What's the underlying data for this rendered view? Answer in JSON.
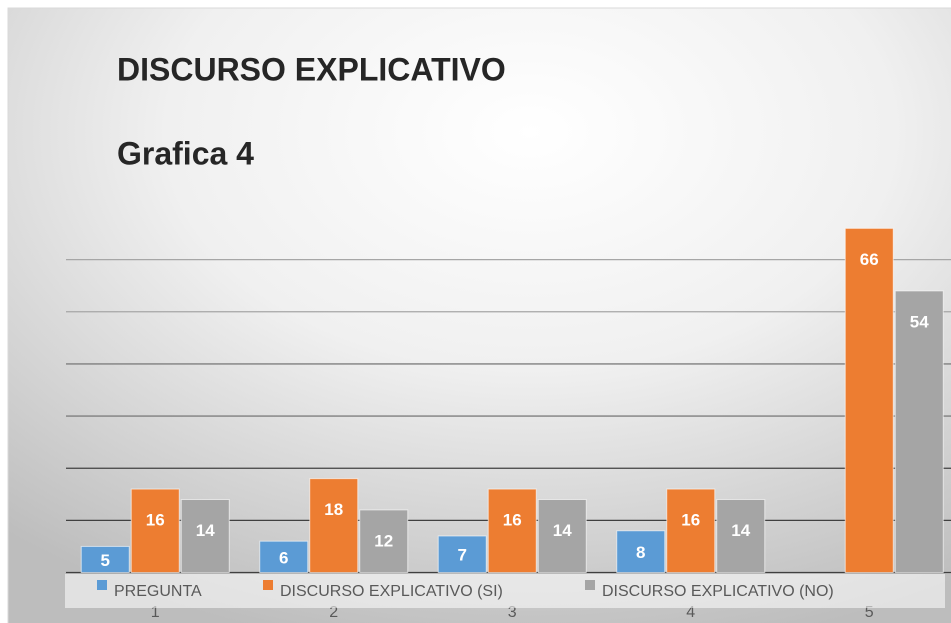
{
  "chart_data": {
    "type": "bar",
    "title": "DISCURSO EXPLICATIVO",
    "subtitle": "Grafica 4",
    "categories": [
      "1",
      "2",
      "3",
      "4",
      "5"
    ],
    "series": [
      {
        "name": "PREGUNTA",
        "color": "#5b9bd5",
        "values": [
          5,
          6,
          7,
          8,
          null
        ]
      },
      {
        "name": "DISCURSO EXPLICATIVO (SI)",
        "color": "#ed7d31",
        "values": [
          16,
          18,
          16,
          16,
          66
        ]
      },
      {
        "name": "DISCURSO EXPLICATIVO (NO)",
        "color": "#a5a5a5",
        "values": [
          14,
          12,
          14,
          14,
          54
        ]
      }
    ],
    "ylim": [
      0,
      70
    ],
    "yticks": [
      0,
      10,
      20,
      30,
      40,
      50,
      60
    ],
    "grid": true,
    "legend": "bottom"
  }
}
